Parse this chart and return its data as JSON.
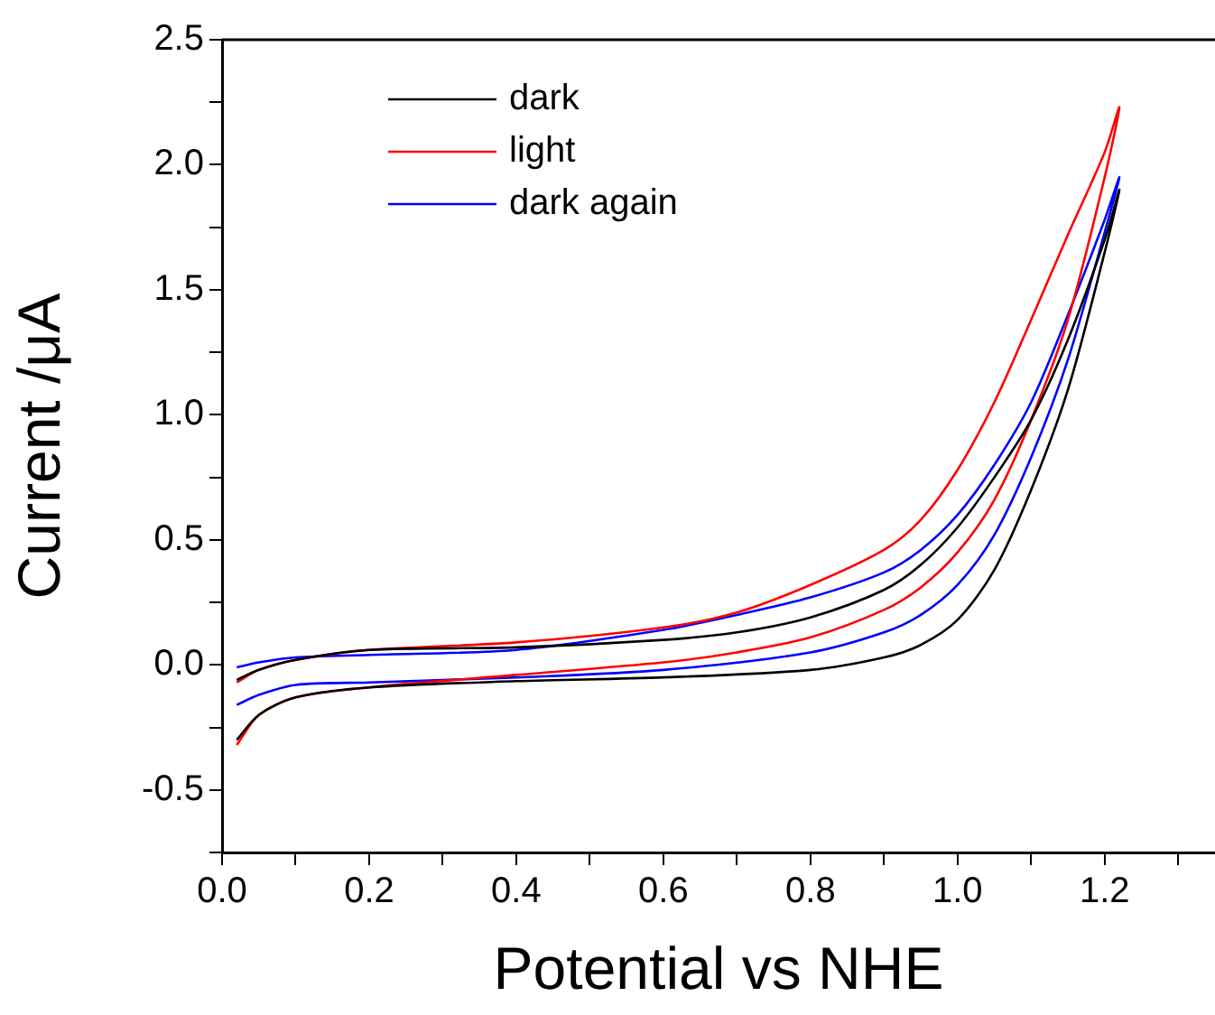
{
  "chart_data": {
    "type": "line",
    "xlabel": "Potential vs NHE",
    "ylabel": "Current /μA",
    "xlim": [
      0,
      1.35
    ],
    "ylim": [
      -0.75,
      2.5
    ],
    "xticks": [
      {
        "value": 0.1,
        "label": null
      },
      {
        "value": 0,
        "label": "0.0"
      },
      0.2,
      {
        "value": 0.3,
        "label": null
      },
      0.4,
      {
        "value": 0.5,
        "label": null
      },
      0.6,
      {
        "value": 0.7,
        "label": null
      },
      0.8,
      {
        "value": 0.9,
        "label": null
      },
      {
        "value": 1,
        "label": "1.0"
      },
      {
        "value": 1.1,
        "label": null
      },
      1.2,
      {
        "value": 1.3,
        "label": null
      }
    ],
    "yticks": [
      {
        "value": -0.75,
        "label": null
      },
      -0.5,
      {
        "value": -0.25,
        "label": null
      },
      {
        "value": 0,
        "label": "0.0"
      },
      {
        "value": 0.25,
        "label": null
      },
      0.5,
      {
        "value": 0.75,
        "label": null
      },
      {
        "value": 1,
        "label": "1.0"
      },
      {
        "value": 1.25,
        "label": null
      },
      1.5,
      {
        "value": 1.75,
        "label": null
      },
      {
        "value": 2,
        "label": "2.0"
      },
      {
        "value": 2.25,
        "label": null
      },
      2.5
    ],
    "grid": false,
    "legend": "top left",
    "marker": "none",
    "line_style": "solid",
    "series": [
      {
        "name": "dark",
        "color": "#000000",
        "x": [
          0.02,
          0.05,
          0.1,
          0.2,
          0.4,
          0.6,
          0.8,
          0.9,
          0.95,
          1.0,
          1.05,
          1.1,
          1.15,
          1.2,
          1.22,
          1.2,
          1.15,
          1.1,
          1.05,
          1.0,
          0.95,
          0.9,
          0.8,
          0.7,
          0.6,
          0.4,
          0.2,
          0.1,
          0.05,
          0.02
        ],
        "values": [
          -0.3,
          -0.2,
          -0.13,
          -0.09,
          -0.065,
          -0.05,
          -0.02,
          0.03,
          0.08,
          0.18,
          0.38,
          0.7,
          1.1,
          1.65,
          1.9,
          1.7,
          1.3,
          0.98,
          0.75,
          0.55,
          0.4,
          0.3,
          0.19,
          0.13,
          0.1,
          0.07,
          0.06,
          0.02,
          -0.02,
          -0.06
        ]
      },
      {
        "name": "light",
        "color": "#ff0000",
        "x": [
          0.02,
          0.05,
          0.1,
          0.2,
          0.4,
          0.6,
          0.7,
          0.8,
          0.9,
          0.95,
          1.0,
          1.05,
          1.1,
          1.15,
          1.2,
          1.22,
          1.2,
          1.15,
          1.1,
          1.05,
          1.0,
          0.95,
          0.9,
          0.8,
          0.7,
          0.6,
          0.4,
          0.2,
          0.1,
          0.05,
          0.02
        ],
        "values": [
          -0.32,
          -0.2,
          -0.13,
          -0.09,
          -0.04,
          0.01,
          0.05,
          0.11,
          0.22,
          0.31,
          0.45,
          0.66,
          0.98,
          1.38,
          1.95,
          2.23,
          2.05,
          1.72,
          1.38,
          1.05,
          0.78,
          0.58,
          0.46,
          0.32,
          0.21,
          0.15,
          0.09,
          0.06,
          0.02,
          -0.02,
          -0.07
        ]
      },
      {
        "name": "dark again",
        "color": "#0000ff",
        "x": [
          0.02,
          0.05,
          0.1,
          0.2,
          0.4,
          0.6,
          0.8,
          0.9,
          0.95,
          1.0,
          1.05,
          1.1,
          1.15,
          1.2,
          1.22,
          1.2,
          1.15,
          1.1,
          1.05,
          1.0,
          0.95,
          0.9,
          0.8,
          0.7,
          0.6,
          0.4,
          0.2,
          0.1,
          0.05,
          0.02
        ],
        "values": [
          -0.16,
          -0.12,
          -0.08,
          -0.07,
          -0.05,
          -0.02,
          0.05,
          0.13,
          0.2,
          0.32,
          0.52,
          0.83,
          1.22,
          1.73,
          1.95,
          1.78,
          1.4,
          1.05,
          0.8,
          0.6,
          0.46,
          0.37,
          0.27,
          0.2,
          0.14,
          0.06,
          0.04,
          0.03,
          0.01,
          -0.01
        ]
      }
    ]
  }
}
